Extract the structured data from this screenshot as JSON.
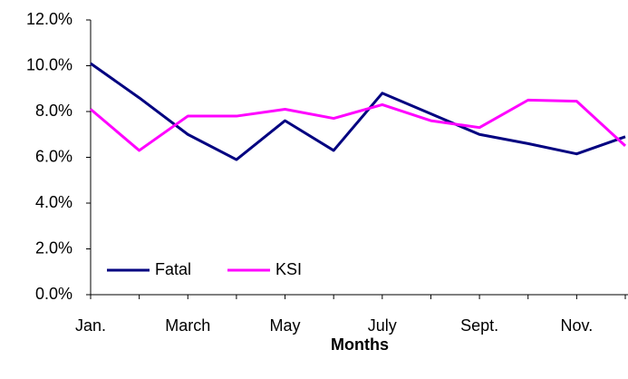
{
  "chart_data": {
    "type": "line",
    "categories": [
      "Jan.",
      null,
      "March",
      null,
      "May",
      null,
      "July",
      null,
      "Sept.",
      null,
      "Nov.",
      null
    ],
    "series": [
      {
        "name": "Fatal",
        "color": "#000080",
        "values": [
          10.1,
          8.6,
          7.0,
          5.9,
          7.6,
          6.3,
          8.8,
          7.9,
          7.0,
          6.6,
          6.15,
          6.9
        ]
      },
      {
        "name": "KSI",
        "color": "#ff00ff",
        "values": [
          8.1,
          6.3,
          7.8,
          7.8,
          8.1,
          7.7,
          8.3,
          7.6,
          7.3,
          8.5,
          8.45,
          6.5
        ]
      }
    ],
    "x_label": "Months",
    "ylim": [
      0,
      12
    ],
    "yticks": [
      {
        "value": 0,
        "label": "0.0%"
      },
      {
        "value": 2,
        "label": "2.0%"
      },
      {
        "value": 4,
        "label": "4.0%"
      },
      {
        "value": 6,
        "label": "6.0%"
      },
      {
        "value": 8,
        "label": "8.0%"
      },
      {
        "value": 10,
        "label": "10.0%"
      },
      {
        "value": 12,
        "label": "12.0%"
      }
    ],
    "grid": false,
    "legend": "lower left"
  }
}
